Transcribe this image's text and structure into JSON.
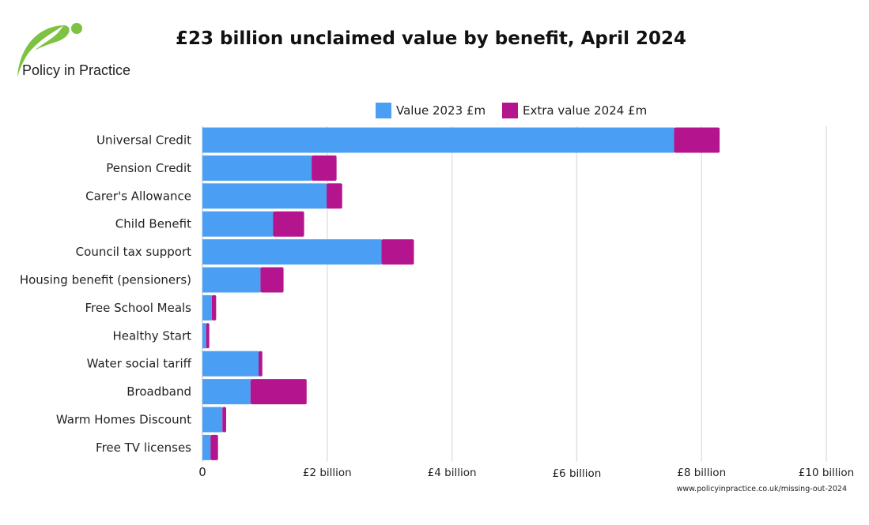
{
  "logo": {
    "text": "Policy in Practice",
    "color": "#7dc242"
  },
  "footer": "www.policyinpractice.co.uk/missing-out-2024",
  "chart_data": {
    "type": "bar",
    "orientation": "horizontal",
    "stacked": true,
    "title": "£23 billion unclaimed value by benefit, April 2024",
    "categories": [
      "Universal Credit",
      "Pension Credit",
      "Carer's Allowance",
      "Child Benefit",
      "Council tax support",
      "Housing benefit (pensioners)",
      "Free School Meals",
      "Healthy Start",
      "Water social tariff",
      "Broadband",
      "Warm Homes Discount",
      "Free TV licenses"
    ],
    "series": [
      {
        "name": "Value 2023 £m",
        "color": "#4a9ff5",
        "values": [
          7560,
          1750,
          1990,
          1130,
          2870,
          930,
          150,
          60,
          900,
          770,
          320,
          130
        ]
      },
      {
        "name": "Extra value 2024 £m",
        "color": "#b5148f",
        "values": [
          730,
          400,
          250,
          500,
          520,
          370,
          70,
          50,
          60,
          900,
          60,
          120
        ]
      }
    ],
    "xlim": [
      0,
      10000
    ],
    "xticks": [
      0,
      2000,
      4000,
      6000,
      8000,
      10000
    ],
    "xtick_labels": [
      "0",
      "£2 billion",
      "£4 billion",
      "£6 billion",
      "£8 billion",
      "£10 billion"
    ],
    "grid": true,
    "legend": "top"
  }
}
